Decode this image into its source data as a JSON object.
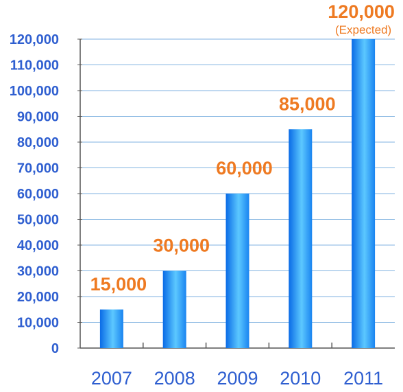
{
  "chart_data": {
    "type": "bar",
    "categories": [
      "2007",
      "2008",
      "2009",
      "2010",
      "2011"
    ],
    "values": [
      15000,
      30000,
      60000,
      85000,
      120000
    ],
    "data_labels": [
      "15,000",
      "30,000",
      "60,000",
      "85,000",
      "120,000"
    ],
    "annotations": [
      "",
      "",
      "",
      "",
      "(Expected)"
    ],
    "yticks": [
      "0",
      "10,000",
      "20,000",
      "30,000",
      "40,000",
      "50,000",
      "60,000",
      "70,000",
      "80,000",
      "90,000",
      "100,000",
      "110,000",
      "120,000"
    ],
    "ylim": [
      0,
      120000
    ],
    "grid": true,
    "legend": "none",
    "title": "",
    "xlabel": "",
    "ylabel": "",
    "colors": {
      "bar_dark": "#0a6be6",
      "bar_light": "#7ee0ff",
      "tick_text": "#2f5fd0",
      "data_label": "#ee7a22",
      "grid": "#7fb2e0",
      "axis": "#555555"
    }
  }
}
